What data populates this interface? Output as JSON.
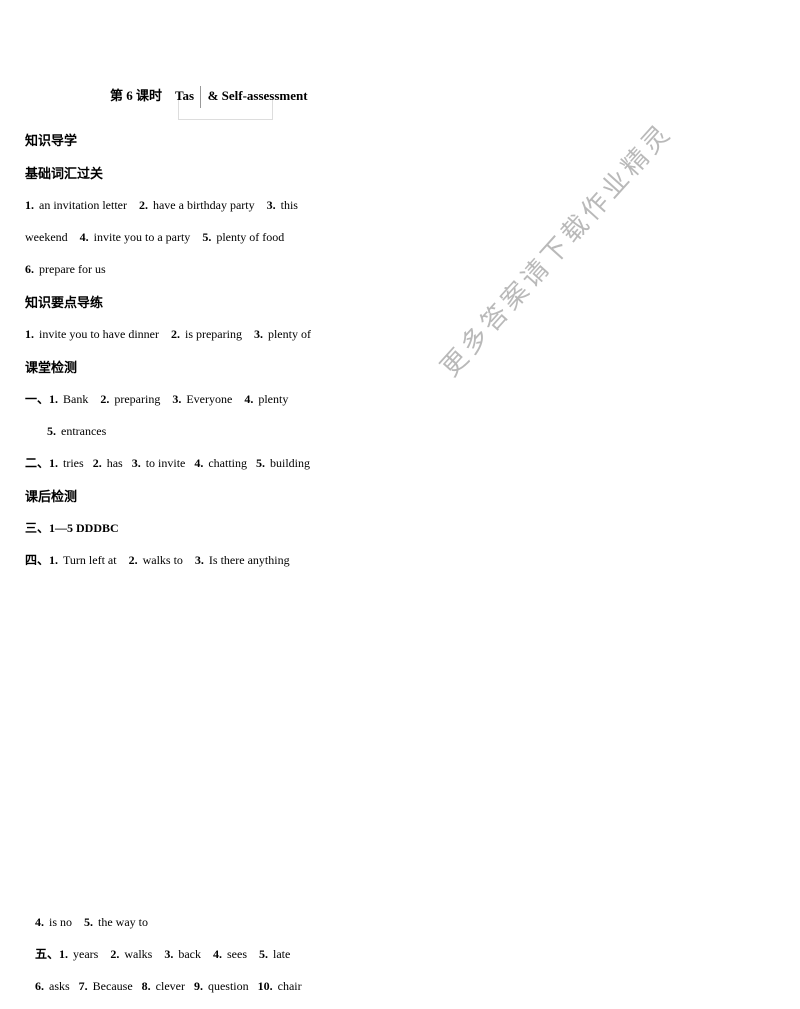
{
  "title": {
    "prefix": "第 6 课时",
    "part1": "Tas",
    "part2": "& Self-assessment"
  },
  "sections": {
    "s1": "知识导学",
    "s2": "基础词汇过关",
    "s3": "知识要点导练",
    "s4": "课堂检测",
    "s5": "课后检测"
  },
  "vocab": {
    "l1a": "1.",
    "l1at": "an invitation letter",
    "l1b": "2.",
    "l1bt": "have a birthday party",
    "l1c": "3.",
    "l1ct": "this",
    "l2a": "weekend",
    "l2b": "4.",
    "l2bt": "invite you to a party",
    "l2c": "5.",
    "l2ct": "plenty of food",
    "l3a": "6.",
    "l3at": "prepare for us"
  },
  "keypoints": {
    "l1a": "1.",
    "l1at": "invite you to have dinner",
    "l1b": "2.",
    "l1bt": "is preparing",
    "l1c": "3.",
    "l1ct": "plenty of"
  },
  "classtest": {
    "r1": "一、1.",
    "r1t": "Bank",
    "r1b": "2.",
    "r1bt": "preparing",
    "r1c": "3.",
    "r1ct": "Everyone",
    "r1d": "4.",
    "r1dt": "plenty",
    "r2": "5.",
    "r2t": "entrances",
    "r3": "二、1.",
    "r3t": "tries",
    "r3b": "2.",
    "r3bt": "has",
    "r3c": "3.",
    "r3ct": "to invite",
    "r3d": "4.",
    "r3dt": "chatting",
    "r3e": "5.",
    "r3et": "building"
  },
  "aftertest": {
    "r1": "三、1—5 DDDBC",
    "r2": "四、1.",
    "r2t": "Turn left at",
    "r2b": "2.",
    "r2bt": "walks to",
    "r2c": "3.",
    "r2ct": "Is there anything"
  },
  "rightcol": {
    "l1a": "4.",
    "l1at": "is no",
    "l1b": "5.",
    "l1bt": "the way to",
    "l2": "五、1.",
    "l2t": "years",
    "l2b": "2.",
    "l2bt": "walks",
    "l2c": "3.",
    "l2ct": "back",
    "l2d": "4.",
    "l2dt": "sees",
    "l2e": "5.",
    "l2et": "late",
    "l3a": "6.",
    "l3at": "asks",
    "l3b": "7.",
    "l3bt": "Because",
    "l3c": "8.",
    "l3ct": "clever",
    "l3d": "9.",
    "l3dt": "question",
    "l3e": "10.",
    "l3et": "chair"
  },
  "watermark": "更多答案请下载作业精灵"
}
